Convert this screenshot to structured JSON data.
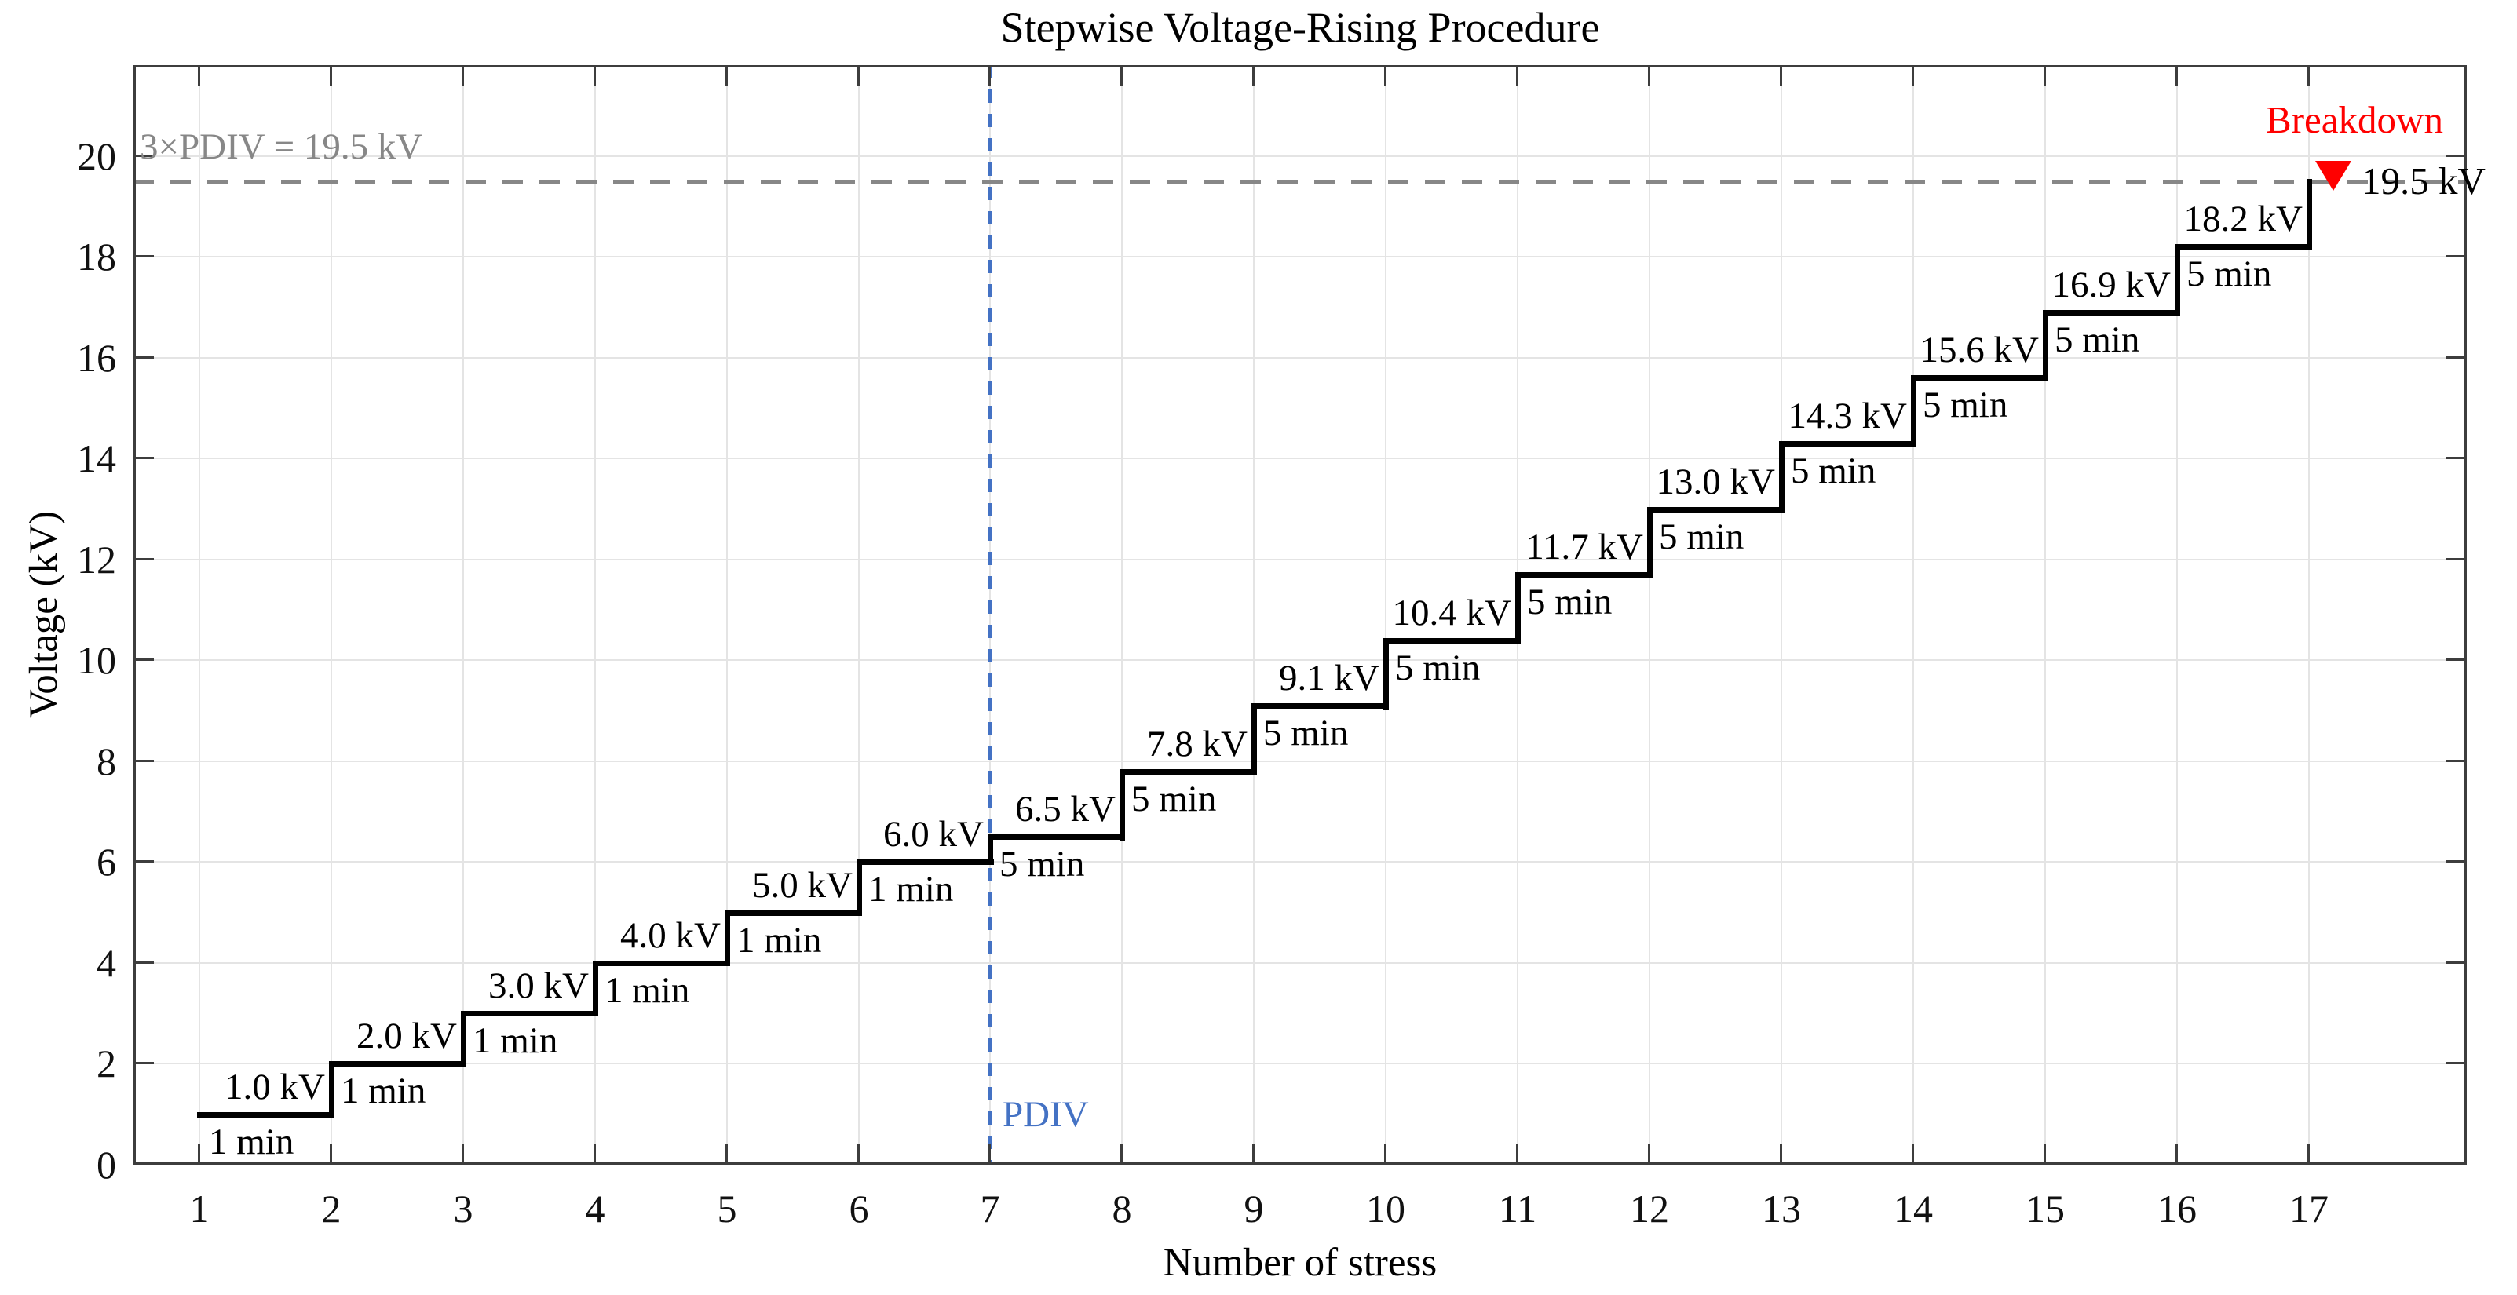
{
  "chart_data": {
    "type": "step-line",
    "title": "Stepwise Voltage-Rising Procedure",
    "xlabel": "Number of stress",
    "ylabel": "Voltage (kV)",
    "xlim": [
      0.5,
      18.2
    ],
    "ylim": [
      0,
      21.8
    ],
    "x_ticks": [
      1,
      2,
      3,
      4,
      5,
      6,
      7,
      8,
      9,
      10,
      11,
      12,
      13,
      14,
      15,
      16,
      17
    ],
    "y_ticks": [
      0,
      2,
      4,
      6,
      8,
      10,
      12,
      14,
      16,
      18,
      20
    ],
    "grid": true,
    "line_color": "#000000",
    "steps": [
      {
        "stress": 1,
        "voltage_kV": 1.0,
        "voltage_label": "1.0 kV",
        "duration_min": 1,
        "duration_label": "1 min"
      },
      {
        "stress": 2,
        "voltage_kV": 2.0,
        "voltage_label": "2.0 kV",
        "duration_min": 1,
        "duration_label": "1 min"
      },
      {
        "stress": 3,
        "voltage_kV": 3.0,
        "voltage_label": "3.0 kV",
        "duration_min": 1,
        "duration_label": "1 min"
      },
      {
        "stress": 4,
        "voltage_kV": 4.0,
        "voltage_label": "4.0 kV",
        "duration_min": 1,
        "duration_label": "1 min"
      },
      {
        "stress": 5,
        "voltage_kV": 5.0,
        "voltage_label": "5.0 kV",
        "duration_min": 1,
        "duration_label": "1 min"
      },
      {
        "stress": 6,
        "voltage_kV": 6.0,
        "voltage_label": "6.0 kV",
        "duration_min": 1,
        "duration_label": "1 min"
      },
      {
        "stress": 7,
        "voltage_kV": 6.5,
        "voltage_label": "6.5 kV",
        "duration_min": 5,
        "duration_label": "5 min"
      },
      {
        "stress": 8,
        "voltage_kV": 7.8,
        "voltage_label": "7.8 kV",
        "duration_min": 5,
        "duration_label": "5 min"
      },
      {
        "stress": 9,
        "voltage_kV": 9.1,
        "voltage_label": "9.1 kV",
        "duration_min": 5,
        "duration_label": "5 min"
      },
      {
        "stress": 10,
        "voltage_kV": 10.4,
        "voltage_label": "10.4 kV",
        "duration_min": 5,
        "duration_label": "5 min"
      },
      {
        "stress": 11,
        "voltage_kV": 11.7,
        "voltage_label": "11.7 kV",
        "duration_min": 5,
        "duration_label": "5 min"
      },
      {
        "stress": 12,
        "voltage_kV": 13.0,
        "voltage_label": "13.0 kV",
        "duration_min": 5,
        "duration_label": "5 min"
      },
      {
        "stress": 13,
        "voltage_kV": 14.3,
        "voltage_label": "14.3 kV",
        "duration_min": 5,
        "duration_label": "5 min"
      },
      {
        "stress": 14,
        "voltage_kV": 15.6,
        "voltage_label": "15.6 kV",
        "duration_min": 5,
        "duration_label": "5 min"
      },
      {
        "stress": 15,
        "voltage_kV": 16.9,
        "voltage_label": "16.9 kV",
        "duration_min": 5,
        "duration_label": "5 min"
      },
      {
        "stress": 16,
        "voltage_kV": 18.2,
        "voltage_label": "18.2 kV",
        "duration_min": 5,
        "duration_label": "5 min"
      }
    ],
    "breakdown": {
      "rise_at_x": 17,
      "voltage_kV": 19.5,
      "marker_x": 17.19,
      "marker": "red-down-triangle",
      "label": "Breakdown",
      "value_label": "19.5 kV",
      "color": "#ff0000"
    },
    "pdiv_line": {
      "x": 7,
      "label": "PDIV",
      "style": "dashed",
      "color": "#4472c4"
    },
    "limit_line": {
      "y_kV": 19.5,
      "label": "3×PDIV = 19.5 kV",
      "style": "dashed",
      "color": "#878787"
    }
  },
  "colors": {
    "background": "#ffffff",
    "axis": "#3d3d3d",
    "grid": "#e4e4e4",
    "step_line": "#000000",
    "limit_line": "#878787",
    "pdiv_line": "#4472c4",
    "breakdown": "#ff0000"
  }
}
